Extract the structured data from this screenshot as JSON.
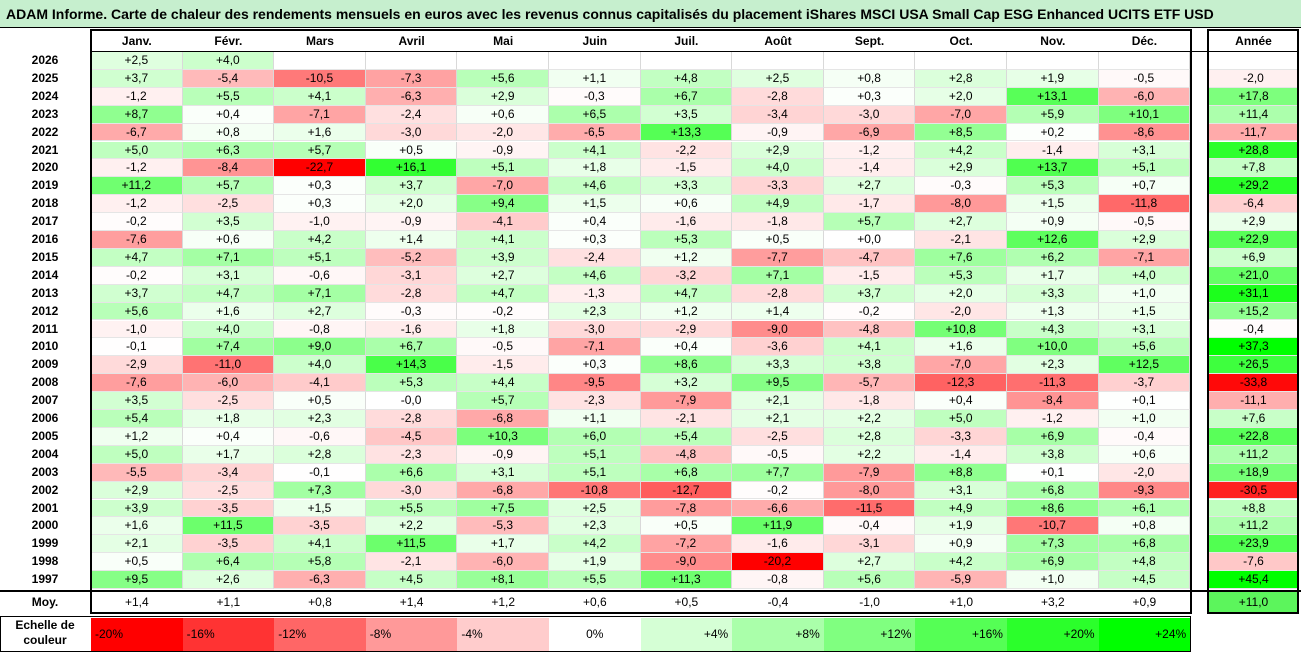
{
  "title": "ADAM Informe. Carte de chaleur des rendements mensuels en euros avec les revenus connus capitalisés du placement iShares MSCI USA Small Cap ESG Enhanced UCITS ETF USD",
  "chart_data": {
    "type": "heatmap",
    "columns": [
      "Janv.",
      "Févr.",
      "Mars",
      "Avril",
      "Mai",
      "Juin",
      "Juil.",
      "Août",
      "Sept.",
      "Oct.",
      "Nov.",
      "Déc."
    ],
    "year_column_label": "Année",
    "rows": [
      {
        "year": "2026",
        "months": [
          "+2,5",
          "+4,0",
          "",
          "",
          "",
          "",
          "",
          "",
          "",
          "",
          "",
          ""
        ],
        "annual": ""
      },
      {
        "year": "2025",
        "months": [
          "+3,7",
          "-5,4",
          "-10,5",
          "-7,3",
          "+5,6",
          "+1,1",
          "+4,8",
          "+2,5",
          "+0,8",
          "+2,8",
          "+1,9",
          "-0,5"
        ],
        "annual": "-2,0"
      },
      {
        "year": "2024",
        "months": [
          "-1,2",
          "+5,5",
          "+4,1",
          "-6,3",
          "+2,9",
          "-0,3",
          "+6,7",
          "-2,8",
          "+0,3",
          "+2,0",
          "+13,1",
          "-6,0"
        ],
        "annual": "+17,8"
      },
      {
        "year": "2023",
        "months": [
          "+8,7",
          "+0,4",
          "-7,1",
          "-2,4",
          "+0,6",
          "+6,5",
          "+3,5",
          "-3,4",
          "-3,0",
          "-7,0",
          "+5,9",
          "+10,1"
        ],
        "annual": "+11,4"
      },
      {
        "year": "2022",
        "months": [
          "-6,7",
          "+0,8",
          "+1,6",
          "-3,0",
          "-2,0",
          "-6,5",
          "+13,3",
          "-0,9",
          "-6,9",
          "+8,5",
          "+0,2",
          "-8,6"
        ],
        "annual": "-11,7"
      },
      {
        "year": "2021",
        "months": [
          "+5,0",
          "+6,3",
          "+5,7",
          "+0,5",
          "-0,9",
          "+4,1",
          "-2,2",
          "+2,9",
          "-1,2",
          "+4,2",
          "-1,4",
          "+3,1"
        ],
        "annual": "+28,8"
      },
      {
        "year": "2020",
        "months": [
          "-1,2",
          "-8,4",
          "-22,7",
          "+16,1",
          "+5,1",
          "+1,8",
          "-1,5",
          "+4,0",
          "-1,4",
          "+2,9",
          "+13,7",
          "+5,1"
        ],
        "annual": "+7,8"
      },
      {
        "year": "2019",
        "months": [
          "+11,2",
          "+5,7",
          "+0,3",
          "+3,7",
          "-7,0",
          "+4,6",
          "+3,3",
          "-3,3",
          "+2,7",
          "-0,3",
          "+5,3",
          "+0,7"
        ],
        "annual": "+29,2"
      },
      {
        "year": "2018",
        "months": [
          "-1,2",
          "-2,5",
          "+0,3",
          "+2,0",
          "+9,4",
          "+1,5",
          "+0,6",
          "+4,9",
          "-1,7",
          "-8,0",
          "+1,5",
          "-11,8"
        ],
        "annual": "-6,4"
      },
      {
        "year": "2017",
        "months": [
          "-0,2",
          "+3,5",
          "-1,0",
          "-0,9",
          "-4,1",
          "+0,4",
          "-1,6",
          "-1,8",
          "+5,7",
          "+2,7",
          "+0,9",
          "-0,5"
        ],
        "annual": "+2,9"
      },
      {
        "year": "2016",
        "months": [
          "-7,6",
          "+0,6",
          "+4,2",
          "+1,4",
          "+4,1",
          "+0,3",
          "+5,3",
          "+0,5",
          "+0,0",
          "-2,1",
          "+12,6",
          "+2,9"
        ],
        "annual": "+22,9"
      },
      {
        "year": "2015",
        "months": [
          "+4,7",
          "+7,1",
          "+5,1",
          "-5,2",
          "+3,9",
          "-2,4",
          "+1,2",
          "-7,7",
          "-4,7",
          "+7,6",
          "+6,2",
          "-7,1"
        ],
        "annual": "+6,9"
      },
      {
        "year": "2014",
        "months": [
          "-0,2",
          "+3,1",
          "-0,6",
          "-3,1",
          "+2,7",
          "+4,6",
          "-3,2",
          "+7,1",
          "-1,5",
          "+5,3",
          "+1,7",
          "+4,0"
        ],
        "annual": "+21,0"
      },
      {
        "year": "2013",
        "months": [
          "+3,7",
          "+4,7",
          "+7,1",
          "-2,8",
          "+4,7",
          "-1,3",
          "+4,7",
          "-2,8",
          "+3,7",
          "+2,0",
          "+3,3",
          "+1,0"
        ],
        "annual": "+31,1"
      },
      {
        "year": "2012",
        "months": [
          "+5,6",
          "+1,6",
          "+2,7",
          "-0,3",
          "-0,2",
          "+2,3",
          "+1,2",
          "+1,4",
          "-0,2",
          "-2,0",
          "+1,3",
          "+1,5"
        ],
        "annual": "+15,2"
      },
      {
        "year": "2011",
        "months": [
          "-1,0",
          "+4,0",
          "-0,8",
          "-1,6",
          "+1,8",
          "-3,0",
          "-2,9",
          "-9,0",
          "-4,8",
          "+10,8",
          "+4,3",
          "+3,1"
        ],
        "annual": "-0,4"
      },
      {
        "year": "2010",
        "months": [
          "-0,1",
          "+7,4",
          "+9,0",
          "+6,7",
          "-0,5",
          "-7,1",
          "+0,4",
          "-3,6",
          "+4,1",
          "+1,6",
          "+10,0",
          "+5,6"
        ],
        "annual": "+37,3"
      },
      {
        "year": "2009",
        "months": [
          "-2,9",
          "-11,0",
          "+4,0",
          "+14,3",
          "-1,5",
          "+0,3",
          "+8,6",
          "+3,3",
          "+3,8",
          "-7,0",
          "+2,3",
          "+12,5"
        ],
        "annual": "+26,5"
      },
      {
        "year": "2008",
        "months": [
          "-7,6",
          "-6,0",
          "-4,1",
          "+5,3",
          "+4,4",
          "-9,5",
          "+3,2",
          "+9,5",
          "-5,7",
          "-12,3",
          "-11,3",
          "-3,7"
        ],
        "annual": "-33,8"
      },
      {
        "year": "2007",
        "months": [
          "+3,5",
          "-2,5",
          "+0,5",
          "-0,0",
          "+5,7",
          "-2,3",
          "-7,9",
          "+2,1",
          "-1,8",
          "+0,4",
          "-8,4",
          "+0,1"
        ],
        "annual": "-11,1"
      },
      {
        "year": "2006",
        "months": [
          "+5,4",
          "+1,8",
          "+2,3",
          "-2,8",
          "-6,8",
          "+1,1",
          "-2,1",
          "+2,1",
          "+2,2",
          "+5,0",
          "-1,2",
          "+1,0"
        ],
        "annual": "+7,6"
      },
      {
        "year": "2005",
        "months": [
          "+1,2",
          "+0,4",
          "-0,6",
          "-4,5",
          "+10,3",
          "+6,0",
          "+5,4",
          "-2,5",
          "+2,8",
          "-3,3",
          "+6,9",
          "-0,4"
        ],
        "annual": "+22,8"
      },
      {
        "year": "2004",
        "months": [
          "+5,0",
          "+1,7",
          "+2,8",
          "-2,3",
          "-0,9",
          "+5,1",
          "-4,8",
          "-0,5",
          "+2,2",
          "-1,4",
          "+3,8",
          "+0,6"
        ],
        "annual": "+11,2"
      },
      {
        "year": "2003",
        "months": [
          "-5,5",
          "-3,4",
          "-0,1",
          "+6,6",
          "+3,1",
          "+5,1",
          "+6,8",
          "+7,7",
          "-7,9",
          "+8,8",
          "+0,1",
          "-2,0"
        ],
        "annual": "+18,9"
      },
      {
        "year": "2002",
        "months": [
          "+2,9",
          "-2,5",
          "+7,3",
          "-3,0",
          "-6,8",
          "-10,8",
          "-12,7",
          "-0,2",
          "-8,0",
          "+3,1",
          "+6,8",
          "-9,3"
        ],
        "annual": "-30,5"
      },
      {
        "year": "2001",
        "months": [
          "+3,9",
          "-3,5",
          "+1,5",
          "+5,5",
          "+7,5",
          "+2,5",
          "-7,8",
          "-6,6",
          "-11,5",
          "+4,9",
          "+8,6",
          "+6,1"
        ],
        "annual": "+8,8"
      },
      {
        "year": "2000",
        "months": [
          "+1,6",
          "+11,5",
          "-3,5",
          "+2,2",
          "-5,3",
          "+2,3",
          "+0,5",
          "+11,9",
          "-0,4",
          "+1,9",
          "-10,7",
          "+0,8"
        ],
        "annual": "+11,2"
      },
      {
        "year": "1999",
        "months": [
          "+2,1",
          "-3,5",
          "+4,1",
          "+11,5",
          "+1,7",
          "+4,2",
          "-7,2",
          "-1,6",
          "-3,1",
          "+0,9",
          "+7,3",
          "+6,8"
        ],
        "annual": "+23,9"
      },
      {
        "year": "1998",
        "months": [
          "+0,5",
          "+6,4",
          "+5,8",
          "-2,1",
          "-6,0",
          "+1,9",
          "-9,0",
          "-20,2",
          "+2,7",
          "+4,2",
          "+6,9",
          "+4,8"
        ],
        "annual": "-7,6"
      },
      {
        "year": "1997",
        "months": [
          "+9,5",
          "+2,6",
          "-6,3",
          "+4,5",
          "+8,1",
          "+5,5",
          "+11,3",
          "-0,8",
          "+5,6",
          "-5,9",
          "+1,0",
          "+4,5"
        ],
        "annual": "+45,4"
      }
    ],
    "average": {
      "label": "Moy.",
      "months": [
        "+1,4",
        "+1,1",
        "+0,8",
        "+1,4",
        "+1,2",
        "+0,6",
        "+0,5",
        "-0,4",
        "-1,0",
        "+1,0",
        "+3,2",
        "+0,9"
      ],
      "annual": "+11,0"
    },
    "scale": {
      "label": "Echelle de couleur",
      "steps": [
        {
          "text": "-20%",
          "value": -20
        },
        {
          "text": "-16%",
          "value": -16
        },
        {
          "text": "-12%",
          "value": -12
        },
        {
          "text": "-8%",
          "value": -8
        },
        {
          "text": "-4%",
          "value": -4
        },
        {
          "text": "0%",
          "value": 0
        },
        {
          "text": "+4%",
          "value": 4
        },
        {
          "text": "+8%",
          "value": 8
        },
        {
          "text": "+12%",
          "value": 12
        },
        {
          "text": "+16%",
          "value": 16
        },
        {
          "text": "+20%",
          "value": 20
        },
        {
          "text": "+24%",
          "value": 24
        }
      ]
    },
    "colors": {
      "negative_max": "#ff0000",
      "neutral": "#ffffff",
      "positive_max": "#00ff00",
      "title_bg": "#c6efce"
    }
  }
}
